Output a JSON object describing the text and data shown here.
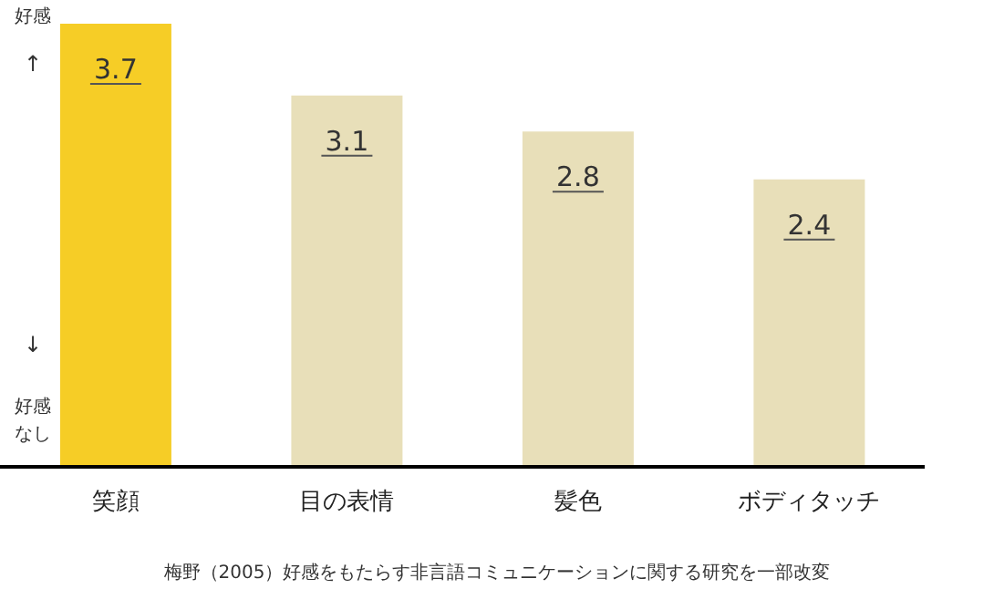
{
  "chart_data": {
    "type": "bar",
    "categories": [
      "笑顔",
      "目の表情",
      "髪色",
      "ボディタッチ"
    ],
    "values": [
      3.7,
      3.1,
      2.8,
      2.4
    ],
    "colors": [
      "#f6cd26",
      "#e8dfb9",
      "#e8dfb9",
      "#e8dfb9"
    ],
    "data_labels": true,
    "grid": false,
    "legend": false,
    "tick_labels": "x",
    "annotations": [
      "好感",
      "↑",
      "↓",
      "好感なし",
      "梅野（2005）好感をもたらす非言語コミュニケーションに関する研究を一部改変"
    ]
  }
}
